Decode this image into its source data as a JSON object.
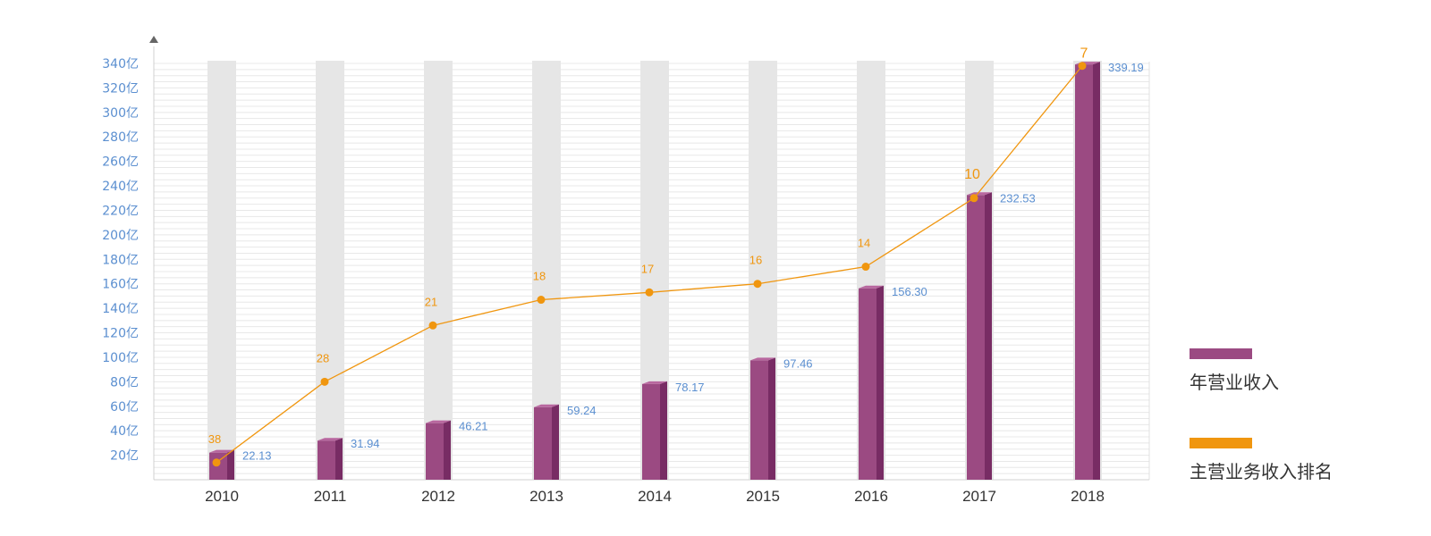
{
  "chart_data": {
    "type": "bar",
    "categories": [
      "2010",
      "2011",
      "2012",
      "2013",
      "2014",
      "2015",
      "2016",
      "2017",
      "2018"
    ],
    "ylim": [
      0,
      340
    ],
    "y_ticks": [
      {
        "value": 20,
        "label": "20亿"
      },
      {
        "value": 40,
        "label": "40亿"
      },
      {
        "value": 60,
        "label": "60亿"
      },
      {
        "value": 80,
        "label": "80亿"
      },
      {
        "value": 100,
        "label": "100亿"
      },
      {
        "value": 120,
        "label": "120亿"
      },
      {
        "value": 140,
        "label": "140亿"
      },
      {
        "value": 160,
        "label": "160亿"
      },
      {
        "value": 180,
        "label": "180亿"
      },
      {
        "value": 200,
        "label": "200亿"
      },
      {
        "value": 220,
        "label": "220亿"
      },
      {
        "value": 240,
        "label": "240亿"
      },
      {
        "value": 260,
        "label": "260亿"
      },
      {
        "value": 280,
        "label": "280亿"
      },
      {
        "value": 300,
        "label": "300亿"
      },
      {
        "value": 320,
        "label": "320亿"
      },
      {
        "value": 340,
        "label": "340亿"
      }
    ],
    "grid": true,
    "series": [
      {
        "name": "年营业收入",
        "type": "bar",
        "color": "#9b4a82",
        "values": [
          22.13,
          31.94,
          46.21,
          59.24,
          78.17,
          97.46,
          156.3,
          232.53,
          339.19
        ],
        "value_labels": [
          "22.13",
          "31.94",
          "46.21",
          "59.24",
          "78.17",
          "97.46",
          "156.30",
          "232.53",
          "339.19"
        ]
      },
      {
        "name": "主营业务收入排名",
        "type": "line",
        "color": "#f0960f",
        "ranks": [
          38,
          28,
          21,
          18,
          17,
          16,
          14,
          10,
          7
        ],
        "plotted_values": [
          14,
          80,
          126,
          147,
          153,
          160,
          174,
          230,
          338
        ]
      }
    ],
    "legend_position": "right"
  },
  "colors": {
    "bar_front": "#9b4a82",
    "bar_side": "#782c64",
    "bar_top": "#b8679f",
    "track": "#e6e6e6",
    "line": "#f0960f",
    "axis_label": "#5b8fd0",
    "value_label": "#5b8fd0",
    "category_label": "#333333",
    "grid": "#e8e8e8"
  }
}
